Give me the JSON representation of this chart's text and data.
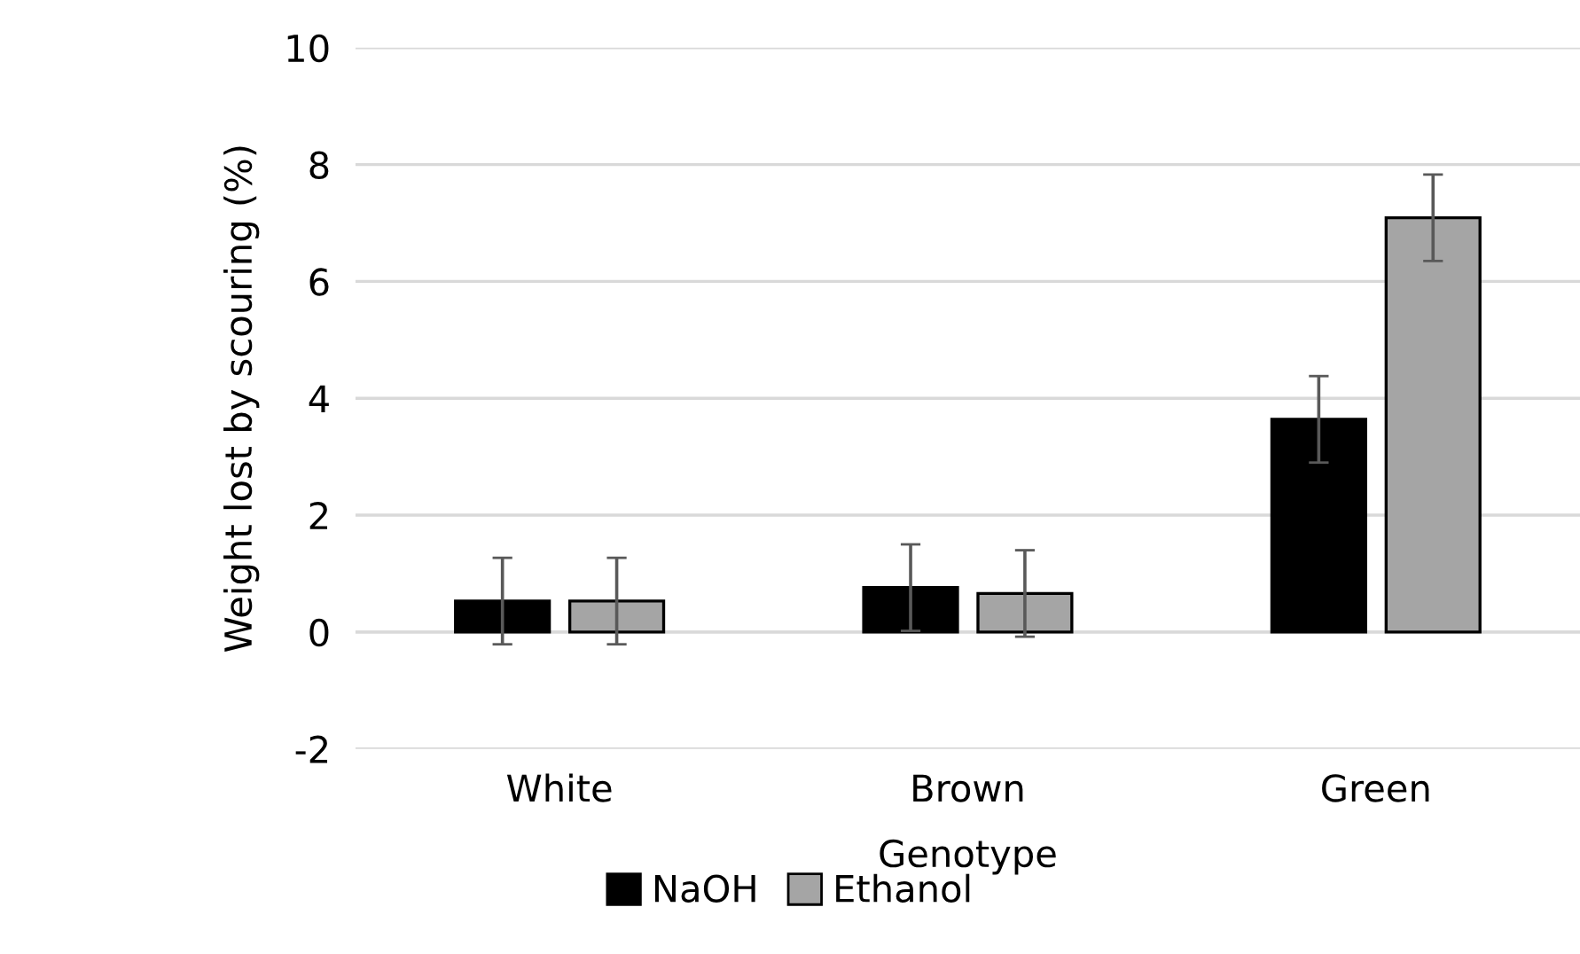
{
  "chart_data": {
    "type": "bar",
    "xlabel": "Genotype",
    "ylabel": "Weight lost by scouring (%)",
    "categories": [
      "White",
      "Brown",
      "Green"
    ],
    "series": [
      {
        "name": "NaOH",
        "color": "#000000",
        "values": [
          0.53,
          0.76,
          3.64
        ],
        "errors": [
          0.74,
          0.74,
          0.74
        ]
      },
      {
        "name": "Ethanol",
        "color": "#a5a5a5",
        "values": [
          0.53,
          0.66,
          7.09
        ],
        "errors": [
          0.74,
          0.74,
          0.74
        ]
      }
    ],
    "ylim": [
      -2,
      10
    ],
    "yticks": [
      -2,
      0,
      2,
      4,
      6,
      8,
      10
    ],
    "grid": "y",
    "legend": "bottom"
  }
}
